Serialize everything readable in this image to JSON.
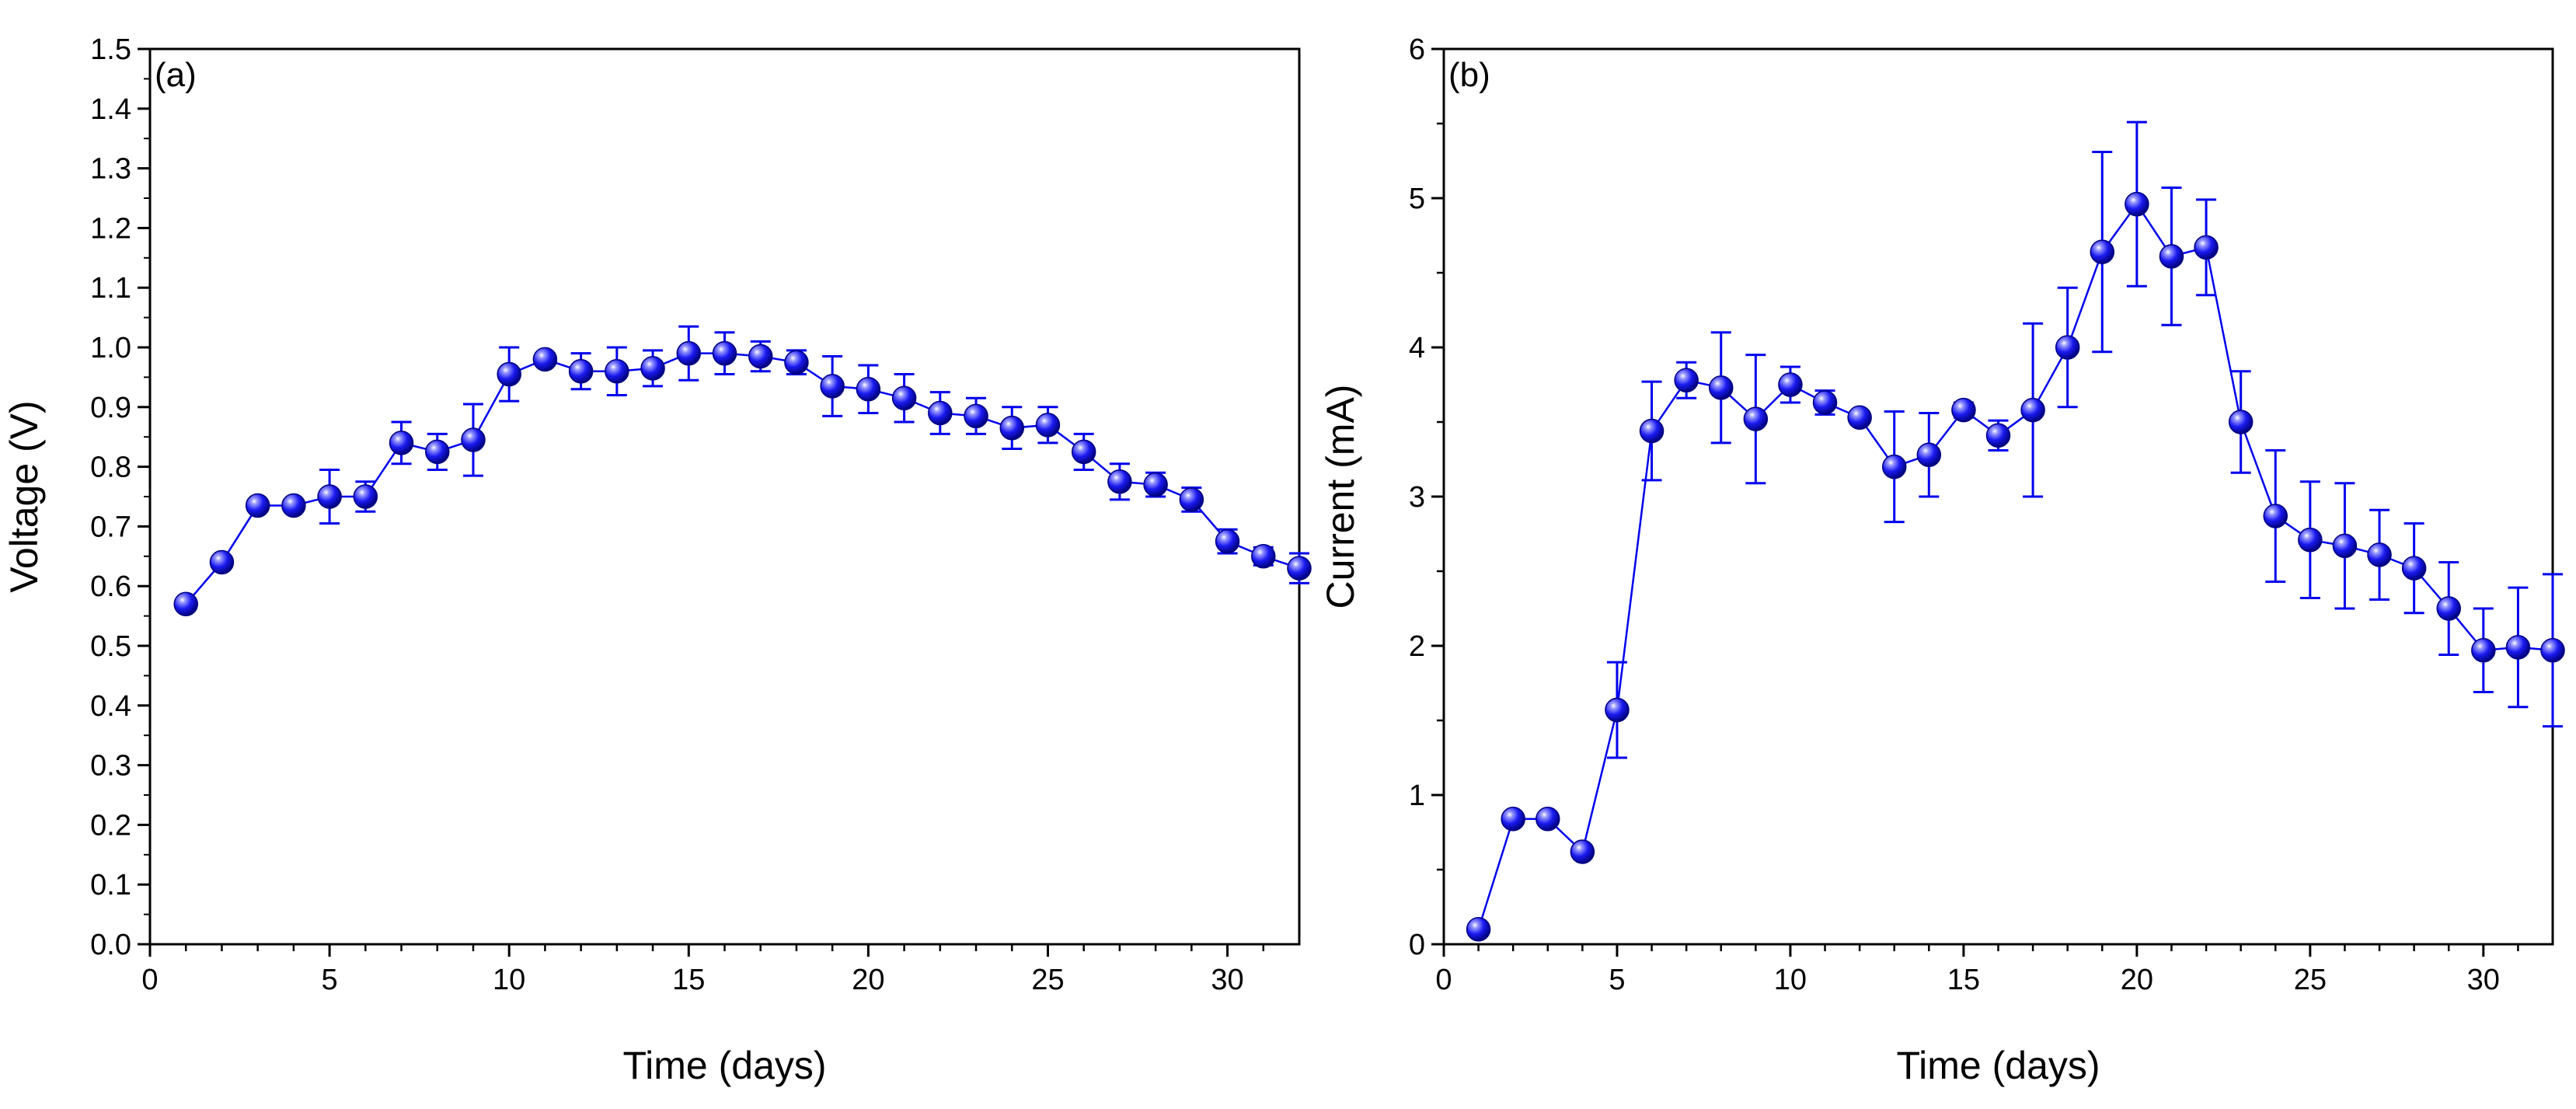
{
  "chart_data": [
    {
      "type": "line",
      "panel_label": "(a)",
      "title": "",
      "xlabel": "Time (days)",
      "ylabel": "Voltage (V)",
      "xlim": [
        0,
        32
      ],
      "ylim": [
        0,
        1.5
      ],
      "x_ticks": [
        0,
        5,
        10,
        15,
        20,
        25,
        30
      ],
      "x_tick_labels": [
        "0",
        "5",
        "10",
        "15",
        "20",
        "25",
        "30"
      ],
      "y_ticks": [
        0,
        0.1,
        0.2,
        0.3,
        0.4,
        0.5,
        0.6,
        0.7,
        0.8,
        0.9,
        1.0,
        1.1,
        1.2,
        1.3,
        1.4,
        1.5
      ],
      "y_tick_labels": [
        "0.0",
        "0.1",
        "0.2",
        "0.3",
        "0.4",
        "0.5",
        "0.6",
        "0.7",
        "0.8",
        "0.9",
        "1.0",
        "1.1",
        "1.2",
        "1.3",
        "1.4",
        "1.5"
      ],
      "grid": false,
      "color": "#0000ee",
      "series": [
        {
          "name": "Voltage",
          "x": [
            1,
            2,
            3,
            4,
            5,
            6,
            7,
            8,
            9,
            10,
            11,
            12,
            13,
            14,
            15,
            16,
            17,
            18,
            19,
            20,
            21,
            22,
            23,
            24,
            25,
            26,
            27,
            28,
            29,
            30,
            31,
            32
          ],
          "y": [
            0.57,
            0.64,
            0.735,
            0.735,
            0.75,
            0.75,
            0.84,
            0.825,
            0.845,
            0.955,
            0.98,
            0.96,
            0.96,
            0.965,
            0.99,
            0.99,
            0.985,
            0.975,
            0.935,
            0.93,
            0.915,
            0.89,
            0.885,
            0.865,
            0.87,
            0.825,
            0.775,
            0.77,
            0.745,
            0.675,
            0.65,
            0.63
          ],
          "err": [
            0.0,
            0.0,
            0.0,
            0.0,
            0.045,
            0.025,
            0.035,
            0.03,
            0.06,
            0.045,
            0.01,
            0.03,
            0.04,
            0.03,
            0.045,
            0.035,
            0.025,
            0.02,
            0.05,
            0.04,
            0.04,
            0.035,
            0.03,
            0.035,
            0.03,
            0.03,
            0.03,
            0.02,
            0.02,
            0.02,
            0.015,
            0.025
          ]
        }
      ]
    },
    {
      "type": "line",
      "panel_label": "(b)",
      "title": "",
      "xlabel": "Time (days)",
      "ylabel": "Current (mA)",
      "xlim": [
        0,
        32
      ],
      "ylim": [
        0,
        6
      ],
      "x_ticks": [
        0,
        5,
        10,
        15,
        20,
        25,
        30
      ],
      "x_tick_labels": [
        "0",
        "5",
        "10",
        "15",
        "20",
        "25",
        "30"
      ],
      "y_ticks": [
        0,
        1,
        2,
        3,
        4,
        5,
        6
      ],
      "y_tick_labels": [
        "0",
        "1",
        "2",
        "3",
        "4",
        "5",
        "6"
      ],
      "grid": false,
      "color": "#0000ee",
      "series": [
        {
          "name": "Current",
          "x": [
            1,
            2,
            3,
            4,
            5,
            6,
            7,
            8,
            9,
            10,
            11,
            12,
            13,
            14,
            15,
            16,
            17,
            18,
            19,
            20,
            21,
            22,
            23,
            24,
            25,
            26,
            27,
            28,
            29,
            30,
            31,
            32
          ],
          "y": [
            0.1,
            0.84,
            0.84,
            0.62,
            1.57,
            3.44,
            3.78,
            3.73,
            3.52,
            3.75,
            3.63,
            3.53,
            3.2,
            3.28,
            3.58,
            3.41,
            3.58,
            4.0,
            4.64,
            4.96,
            4.61,
            4.67,
            3.5,
            2.87,
            2.71,
            2.67,
            2.61,
            2.52,
            2.25,
            1.97,
            1.99,
            1.97
          ],
          "err": [
            0.0,
            0.0,
            0.0,
            0.0,
            0.32,
            0.33,
            0.12,
            0.37,
            0.43,
            0.12,
            0.08,
            0.04,
            0.37,
            0.28,
            0.05,
            0.1,
            0.58,
            0.4,
            0.67,
            0.55,
            0.46,
            0.32,
            0.34,
            0.44,
            0.39,
            0.42,
            0.3,
            0.3,
            0.31,
            0.28,
            0.4,
            0.51
          ]
        }
      ]
    }
  ]
}
